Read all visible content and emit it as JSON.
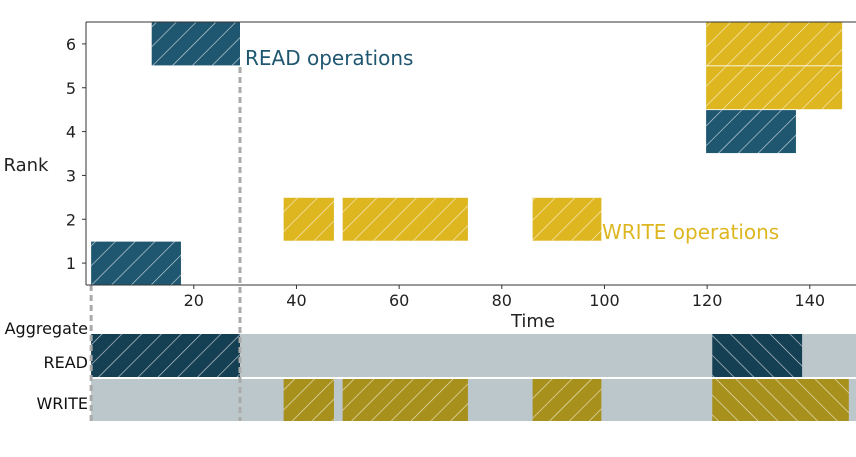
{
  "colors": {
    "read": "#1f5670",
    "write": "#ddb620",
    "read_agg": "#153f53",
    "write_agg": "#a8901c",
    "agg_bg": "#bcc7cc",
    "axis": "#333333",
    "guide": "#aaaaaa"
  },
  "chart_data": {
    "type": "timeline",
    "xlabel": "Time",
    "ylabel": "Rank",
    "xlim": [
      -1,
      149
    ],
    "ylim": [
      0.5,
      6.5
    ],
    "xticks": [
      20,
      40,
      60,
      80,
      100,
      120,
      140
    ],
    "yticks": [
      1,
      2,
      3,
      4,
      5,
      6
    ],
    "read_label": "READ operations",
    "write_label": "WRITE operations",
    "guide_x": [
      0,
      29
    ],
    "ops": [
      {
        "kind": "read",
        "rank": 1,
        "start": 0,
        "end": 17.5
      },
      {
        "kind": "read",
        "rank": 6,
        "start": 11.8,
        "end": 29
      },
      {
        "kind": "write",
        "rank": 2,
        "start": 37.5,
        "end": 47.3
      },
      {
        "kind": "write",
        "rank": 2,
        "start": 49,
        "end": 73.4
      },
      {
        "kind": "write",
        "rank": 2,
        "start": 86,
        "end": 99.4
      },
      {
        "kind": "read",
        "rank": 4,
        "start": 119.8,
        "end": 137.3
      },
      {
        "kind": "write",
        "rank": 5,
        "start": 119.8,
        "end": 146.3
      },
      {
        "kind": "write",
        "rank": 6,
        "start": 119.8,
        "end": 146.3
      }
    ],
    "aggregate": {
      "title": "Aggregate",
      "rows": [
        {
          "label": "READ",
          "kind": "read",
          "intervals": [
            [
              0,
              29
            ],
            [
              121,
              138.5
            ]
          ]
        },
        {
          "label": "WRITE",
          "kind": "write",
          "intervals": [
            [
              37.5,
              47.3
            ],
            [
              49,
              73.4
            ],
            [
              86,
              99.4
            ],
            [
              121,
              147.6
            ]
          ]
        }
      ]
    }
  }
}
